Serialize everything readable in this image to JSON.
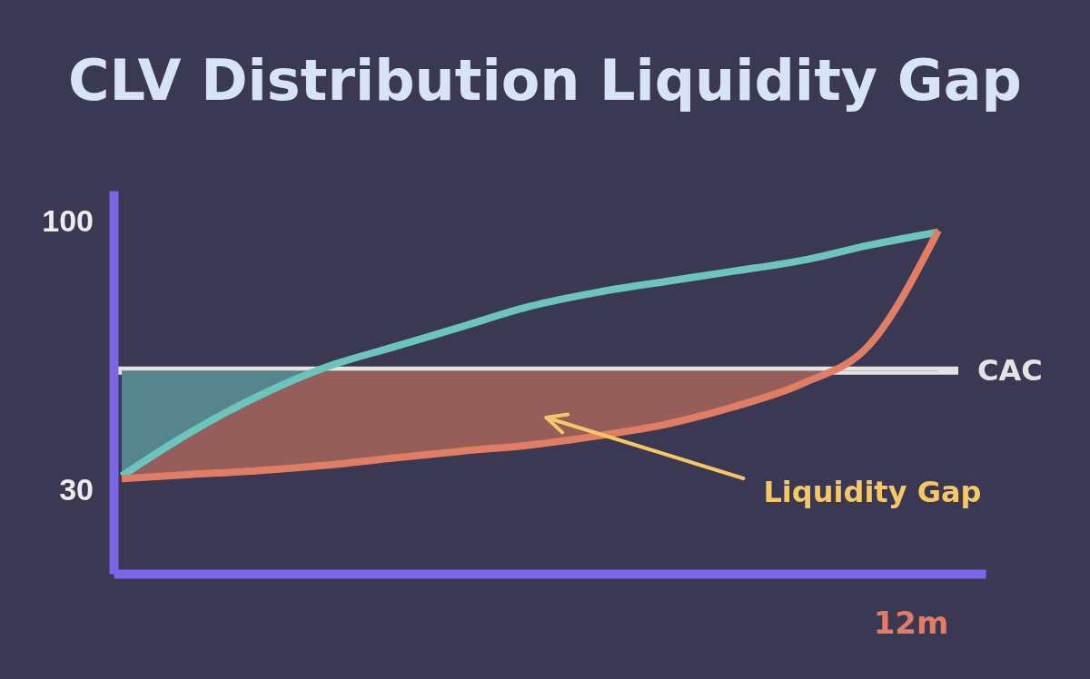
{
  "chart_data": {
    "type": "line",
    "title": "CLV Distribution Liquidity Gap",
    "categories": [
      null,
      null,
      null,
      null,
      null,
      null,
      null,
      null,
      null,
      null,
      null,
      null,
      null
    ],
    "ylim": [
      8,
      108
    ],
    "yticks": [
      30,
      100
    ],
    "series": [
      {
        "color": "#6cc4bf",
        "values": [
          33.5,
          44.8,
          54.3,
          61.9,
          67.2,
          72.5,
          77.8,
          81.5,
          84.3,
          87.0,
          89.8,
          93.8,
          97.2
        ]
      },
      {
        "color": "#e07d63",
        "values": [
          32.8,
          33.9,
          34.9,
          36.3,
          38.2,
          40.0,
          41.6,
          44.0,
          47.0,
          51.6,
          57.6,
          68.0,
          97.6
        ]
      }
    ],
    "ref_lines": [
      {
        "axis": "y",
        "value": 61,
        "label": "CAC",
        "color": "#e4e4e4"
      }
    ],
    "annotations": [
      "Liquidity Gap",
      "12m"
    ],
    "grid": false,
    "marker": "none",
    "line_style": "solid"
  }
}
